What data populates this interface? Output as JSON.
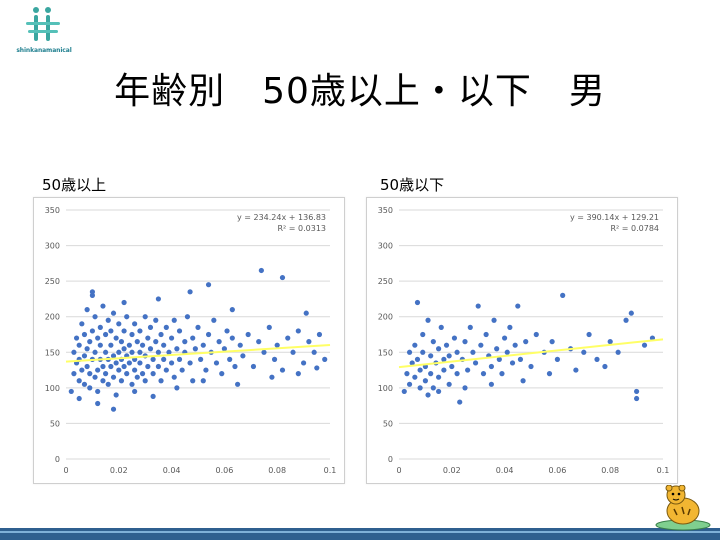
{
  "logo": {
    "text": "shinkanamanical"
  },
  "slide": {
    "title": "年齢別　50歳以上・以下　男"
  },
  "colors": {
    "points": "#4472c4",
    "trend": "#ffff66",
    "grid": "#d9d9d9",
    "axis_text": "#595959"
  },
  "chart_data": [
    {
      "type": "scatter",
      "panel_label": "50歳以上",
      "title": "",
      "xlabel": "",
      "ylabel": "",
      "xlim": [
        0,
        0.1
      ],
      "ylim": [
        0,
        350
      ],
      "xticks": [
        "0",
        "0.02",
        "0.04",
        "0.06",
        "0.08",
        "0.1"
      ],
      "yticks": [
        "0",
        "50",
        "100",
        "150",
        "200",
        "250",
        "300",
        "350"
      ],
      "grid": "horizontal",
      "trendline": {
        "slope": 234.24,
        "intercept": 136.83,
        "x_range": [
          0,
          0.1
        ]
      },
      "annotation": [
        "y = 234.24x + 136.83",
        "R² = 0.0313"
      ],
      "points": [
        [
          0.002,
          95
        ],
        [
          0.003,
          120
        ],
        [
          0.003,
          150
        ],
        [
          0.004,
          135
        ],
        [
          0.004,
          170
        ],
        [
          0.005,
          110
        ],
        [
          0.005,
          140
        ],
        [
          0.005,
          160
        ],
        [
          0.006,
          125
        ],
        [
          0.006,
          190
        ],
        [
          0.007,
          105
        ],
        [
          0.007,
          145
        ],
        [
          0.007,
          175
        ],
        [
          0.008,
          130
        ],
        [
          0.008,
          155
        ],
        [
          0.008,
          210
        ],
        [
          0.009,
          100
        ],
        [
          0.009,
          165
        ],
        [
          0.009,
          120
        ],
        [
          0.01,
          140
        ],
        [
          0.01,
          180
        ],
        [
          0.01,
          235
        ],
        [
          0.011,
          115
        ],
        [
          0.011,
          150
        ],
        [
          0.011,
          200
        ],
        [
          0.012,
          125
        ],
        [
          0.012,
          170
        ],
        [
          0.012,
          95
        ],
        [
          0.013,
          140
        ],
        [
          0.013,
          160
        ],
        [
          0.013,
          185
        ],
        [
          0.014,
          110
        ],
        [
          0.014,
          130
        ],
        [
          0.014,
          215
        ],
        [
          0.015,
          150
        ],
        [
          0.015,
          175
        ],
        [
          0.015,
          120
        ],
        [
          0.016,
          140
        ],
        [
          0.016,
          195
        ],
        [
          0.016,
          105
        ],
        [
          0.017,
          160
        ],
        [
          0.017,
          130
        ],
        [
          0.017,
          180
        ],
        [
          0.018,
          115
        ],
        [
          0.018,
          145
        ],
        [
          0.018,
          205
        ],
        [
          0.019,
          135
        ],
        [
          0.019,
          170
        ],
        [
          0.019,
          90
        ],
        [
          0.02,
          150
        ],
        [
          0.02,
          125
        ],
        [
          0.02,
          190
        ],
        [
          0.021,
          140
        ],
        [
          0.021,
          165
        ],
        [
          0.021,
          110
        ],
        [
          0.022,
          155
        ],
        [
          0.022,
          180
        ],
        [
          0.022,
          130
        ],
        [
          0.023,
          145
        ],
        [
          0.023,
          200
        ],
        [
          0.023,
          120
        ],
        [
          0.024,
          160
        ],
        [
          0.024,
          135
        ],
        [
          0.025,
          175
        ],
        [
          0.025,
          105
        ],
        [
          0.025,
          150
        ],
        [
          0.026,
          140
        ],
        [
          0.026,
          190
        ],
        [
          0.026,
          125
        ],
        [
          0.027,
          165
        ],
        [
          0.027,
          115
        ],
        [
          0.028,
          150
        ],
        [
          0.028,
          180
        ],
        [
          0.028,
          135
        ],
        [
          0.029,
          120
        ],
        [
          0.029,
          160
        ],
        [
          0.03,
          145
        ],
        [
          0.03,
          200
        ],
        [
          0.03,
          110
        ],
        [
          0.031,
          170
        ],
        [
          0.031,
          130
        ],
        [
          0.032,
          155
        ],
        [
          0.032,
          185
        ],
        [
          0.033,
          140
        ],
        [
          0.033,
          120
        ],
        [
          0.034,
          165
        ],
        [
          0.034,
          195
        ],
        [
          0.035,
          130
        ],
        [
          0.035,
          150
        ],
        [
          0.036,
          175
        ],
        [
          0.036,
          110
        ],
        [
          0.037,
          160
        ],
        [
          0.037,
          140
        ],
        [
          0.038,
          185
        ],
        [
          0.038,
          125
        ],
        [
          0.039,
          150
        ],
        [
          0.04,
          170
        ],
        [
          0.04,
          135
        ],
        [
          0.041,
          195
        ],
        [
          0.041,
          115
        ],
        [
          0.042,
          155
        ],
        [
          0.043,
          140
        ],
        [
          0.043,
          180
        ],
        [
          0.044,
          125
        ],
        [
          0.045,
          165
        ],
        [
          0.045,
          150
        ],
        [
          0.046,
          200
        ],
        [
          0.047,
          135
        ],
        [
          0.048,
          170
        ],
        [
          0.048,
          110
        ],
        [
          0.049,
          155
        ],
        [
          0.05,
          185
        ],
        [
          0.051,
          140
        ],
        [
          0.052,
          160
        ],
        [
          0.053,
          125
        ],
        [
          0.054,
          175
        ],
        [
          0.055,
          150
        ],
        [
          0.056,
          195
        ],
        [
          0.057,
          135
        ],
        [
          0.058,
          165
        ],
        [
          0.059,
          120
        ],
        [
          0.06,
          155
        ],
        [
          0.061,
          180
        ],
        [
          0.062,
          140
        ],
        [
          0.063,
          170
        ],
        [
          0.064,
          130
        ],
        [
          0.066,
          160
        ],
        [
          0.067,
          145
        ],
        [
          0.069,
          175
        ],
        [
          0.071,
          130
        ],
        [
          0.073,
          165
        ],
        [
          0.075,
          150
        ],
        [
          0.077,
          185
        ],
        [
          0.079,
          140
        ],
        [
          0.08,
          160
        ],
        [
          0.082,
          125
        ],
        [
          0.084,
          170
        ],
        [
          0.086,
          150
        ],
        [
          0.088,
          180
        ],
        [
          0.09,
          135
        ],
        [
          0.092,
          165
        ],
        [
          0.094,
          150
        ],
        [
          0.096,
          175
        ],
        [
          0.098,
          140
        ],
        [
          0.005,
          85
        ],
        [
          0.012,
          78
        ],
        [
          0.018,
          70
        ],
        [
          0.026,
          95
        ],
        [
          0.033,
          88
        ],
        [
          0.042,
          100
        ],
        [
          0.052,
          110
        ],
        [
          0.065,
          105
        ],
        [
          0.078,
          115
        ],
        [
          0.088,
          120
        ],
        [
          0.095,
          128
        ],
        [
          0.01,
          230
        ],
        [
          0.022,
          220
        ],
        [
          0.035,
          225
        ],
        [
          0.047,
          235
        ],
        [
          0.074,
          265
        ],
        [
          0.082,
          255
        ],
        [
          0.063,
          210
        ],
        [
          0.091,
          205
        ],
        [
          0.054,
          245
        ]
      ]
    },
    {
      "type": "scatter",
      "panel_label": "50歳以下",
      "title": "",
      "xlabel": "",
      "ylabel": "",
      "xlim": [
        0,
        0.1
      ],
      "ylim": [
        0,
        350
      ],
      "xticks": [
        "0",
        "0.02",
        "0.04",
        "0.06",
        "0.08",
        "0.1"
      ],
      "yticks": [
        "0",
        "50",
        "100",
        "150",
        "200",
        "250",
        "300",
        "350"
      ],
      "grid": "horizontal",
      "trendline": {
        "slope": 390.14,
        "intercept": 129.21,
        "x_range": [
          0,
          0.1
        ]
      },
      "annotation": [
        "y = 390.14x + 129.21",
        "R² = 0.0784"
      ],
      "points": [
        [
          0.002,
          95
        ],
        [
          0.003,
          120
        ],
        [
          0.004,
          150
        ],
        [
          0.004,
          105
        ],
        [
          0.005,
          135
        ],
        [
          0.006,
          160
        ],
        [
          0.006,
          115
        ],
        [
          0.007,
          140
        ],
        [
          0.007,
          220
        ],
        [
          0.008,
          125
        ],
        [
          0.008,
          100
        ],
        [
          0.009,
          150
        ],
        [
          0.009,
          175
        ],
        [
          0.01,
          110
        ],
        [
          0.01,
          130
        ],
        [
          0.011,
          195
        ],
        [
          0.012,
          145
        ],
        [
          0.012,
          120
        ],
        [
          0.013,
          165
        ],
        [
          0.013,
          100
        ],
        [
          0.014,
          135
        ],
        [
          0.015,
          155
        ],
        [
          0.015,
          115
        ],
        [
          0.016,
          185
        ],
        [
          0.017,
          140
        ],
        [
          0.017,
          125
        ],
        [
          0.018,
          160
        ],
        [
          0.019,
          105
        ],
        [
          0.019,
          145
        ],
        [
          0.02,
          130
        ],
        [
          0.021,
          170
        ],
        [
          0.022,
          120
        ],
        [
          0.022,
          150
        ],
        [
          0.023,
          80
        ],
        [
          0.024,
          140
        ],
        [
          0.025,
          165
        ],
        [
          0.026,
          125
        ],
        [
          0.027,
          185
        ],
        [
          0.028,
          150
        ],
        [
          0.029,
          135
        ],
        [
          0.03,
          215
        ],
        [
          0.031,
          160
        ],
        [
          0.032,
          120
        ],
        [
          0.033,
          175
        ],
        [
          0.034,
          145
        ],
        [
          0.035,
          130
        ],
        [
          0.036,
          195
        ],
        [
          0.037,
          155
        ],
        [
          0.038,
          140
        ],
        [
          0.039,
          120
        ],
        [
          0.04,
          170
        ],
        [
          0.041,
          150
        ],
        [
          0.042,
          185
        ],
        [
          0.043,
          135
        ],
        [
          0.044,
          160
        ],
        [
          0.045,
          215
        ],
        [
          0.046,
          140
        ],
        [
          0.048,
          165
        ],
        [
          0.05,
          130
        ],
        [
          0.052,
          175
        ],
        [
          0.055,
          150
        ],
        [
          0.058,
          165
        ],
        [
          0.06,
          140
        ],
        [
          0.062,
          230
        ],
        [
          0.065,
          155
        ],
        [
          0.067,
          125
        ],
        [
          0.07,
          150
        ],
        [
          0.072,
          175
        ],
        [
          0.075,
          140
        ],
        [
          0.078,
          130
        ],
        [
          0.08,
          165
        ],
        [
          0.083,
          150
        ],
        [
          0.086,
          195
        ],
        [
          0.088,
          205
        ],
        [
          0.09,
          95
        ],
        [
          0.09,
          85
        ],
        [
          0.093,
          160
        ],
        [
          0.096,
          170
        ],
        [
          0.025,
          100
        ],
        [
          0.047,
          110
        ],
        [
          0.057,
          120
        ],
        [
          0.035,
          105
        ],
        [
          0.015,
          95
        ],
        [
          0.011,
          90
        ]
      ]
    }
  ]
}
